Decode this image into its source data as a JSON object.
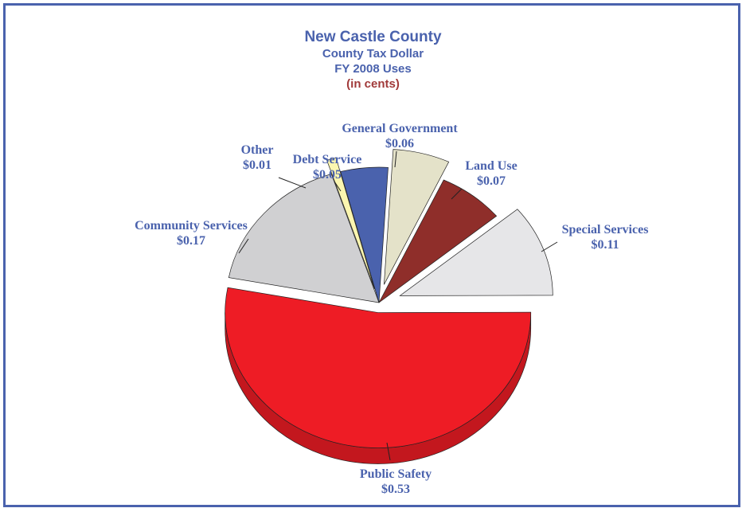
{
  "chart_data": {
    "type": "pie",
    "title": "New Castle County",
    "subtitle": [
      "County Tax Dollar",
      "FY 2008 Uses"
    ],
    "unit_note": "(in cents)",
    "slices": [
      {
        "name": "Public Safety",
        "value": 0.53,
        "value_label": "$0.53",
        "color": "#ee1c25"
      },
      {
        "name": "Special Services",
        "value": 0.11,
        "value_label": "$0.11",
        "color": "#e6e6e8"
      },
      {
        "name": "Land Use",
        "value": 0.07,
        "value_label": "$0.07",
        "color": "#8f2e2a"
      },
      {
        "name": "General Government",
        "value": 0.06,
        "value_label": "$0.06",
        "color": "#e4e2c9"
      },
      {
        "name": "Debt Service",
        "value": 0.05,
        "value_label": "$0.05",
        "color": "#4a62ad"
      },
      {
        "name": "Other",
        "value": 0.01,
        "value_label": "$0.01",
        "color": "#fbf6b0"
      },
      {
        "name": "Community Services",
        "value": 0.17,
        "value_label": "$0.17",
        "color": "#d0d0d2"
      }
    ],
    "colors": {
      "label": "#4a62ad",
      "unit_note": "#a13a3a",
      "frame": "#4a62ad"
    }
  }
}
